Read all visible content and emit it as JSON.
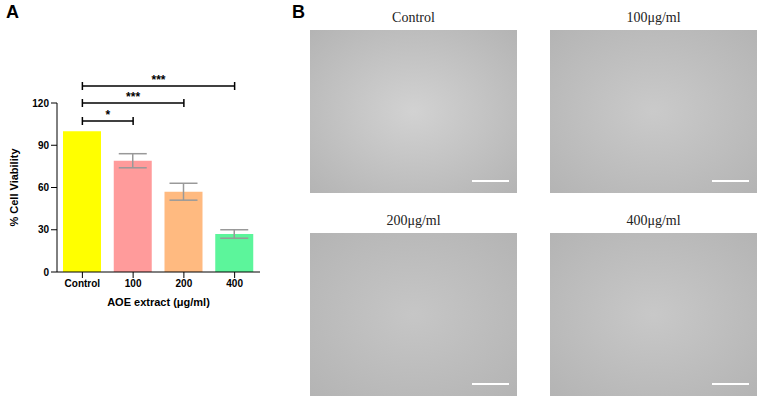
{
  "panel_labels": [
    "A",
    "B"
  ],
  "chart_data": {
    "type": "bar",
    "categories": [
      "Control",
      "100",
      "200",
      "400"
    ],
    "values": [
      100,
      79,
      57,
      27
    ],
    "error": [
      null,
      5,
      6,
      3
    ],
    "colors": [
      "#ffff00",
      "#ff9b9b",
      "#ffba80",
      "#5cf59b"
    ],
    "xlabel": "AOE extract (μg/ml)",
    "ylabel": "% Cell Viability",
    "ylim": [
      0,
      120
    ],
    "yticks": [
      0,
      30,
      60,
      90,
      120
    ],
    "grid": false,
    "significance": [
      {
        "from": "Control",
        "to": "100",
        "label": "*"
      },
      {
        "from": "Control",
        "to": "200",
        "label": "***"
      },
      {
        "from": "Control",
        "to": "400",
        "label": "***"
      }
    ]
  },
  "images": {
    "titles": [
      "Control",
      "100μg/ml",
      "200μg/ml",
      "400μg/ml"
    ]
  }
}
